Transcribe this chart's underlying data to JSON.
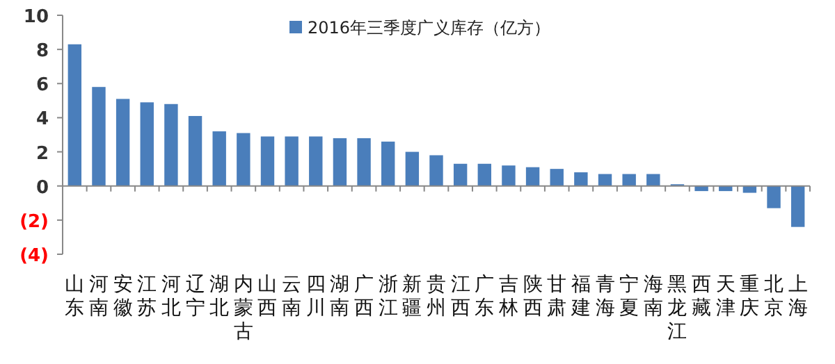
{
  "chart_data": {
    "type": "bar",
    "categories": [
      "山东",
      "河南",
      "安徽",
      "江苏",
      "河北",
      "辽宁",
      "湖北",
      "内蒙古",
      "山西",
      "云南",
      "四川",
      "湖南",
      "广西",
      "浙江",
      "新疆",
      "贵州",
      "江西",
      "广东",
      "吉林",
      "陕西",
      "甘肃",
      "福建",
      "青海",
      "宁夏",
      "海南",
      "黑龙江",
      "西藏",
      "天津",
      "重庆",
      "北京",
      "上海"
    ],
    "series": [
      {
        "name": "2016年三季度广义库存（亿方）",
        "color": "#4a7ebb",
        "values": [
          8.3,
          5.8,
          5.1,
          4.9,
          4.8,
          4.1,
          3.2,
          3.1,
          2.9,
          2.9,
          2.9,
          2.8,
          2.8,
          2.6,
          2.0,
          1.8,
          1.3,
          1.3,
          1.2,
          1.1,
          1.0,
          0.8,
          0.7,
          0.7,
          0.7,
          0.1,
          -0.3,
          -0.3,
          -0.4,
          -1.3,
          -2.4
        ]
      }
    ],
    "ylim": [
      -4,
      10
    ],
    "yticks": [
      10,
      8,
      6,
      4,
      2,
      0,
      {
        "value": -2,
        "label": "(2)"
      },
      {
        "value": -4,
        "label": "(4)"
      }
    ],
    "legend": "top"
  }
}
